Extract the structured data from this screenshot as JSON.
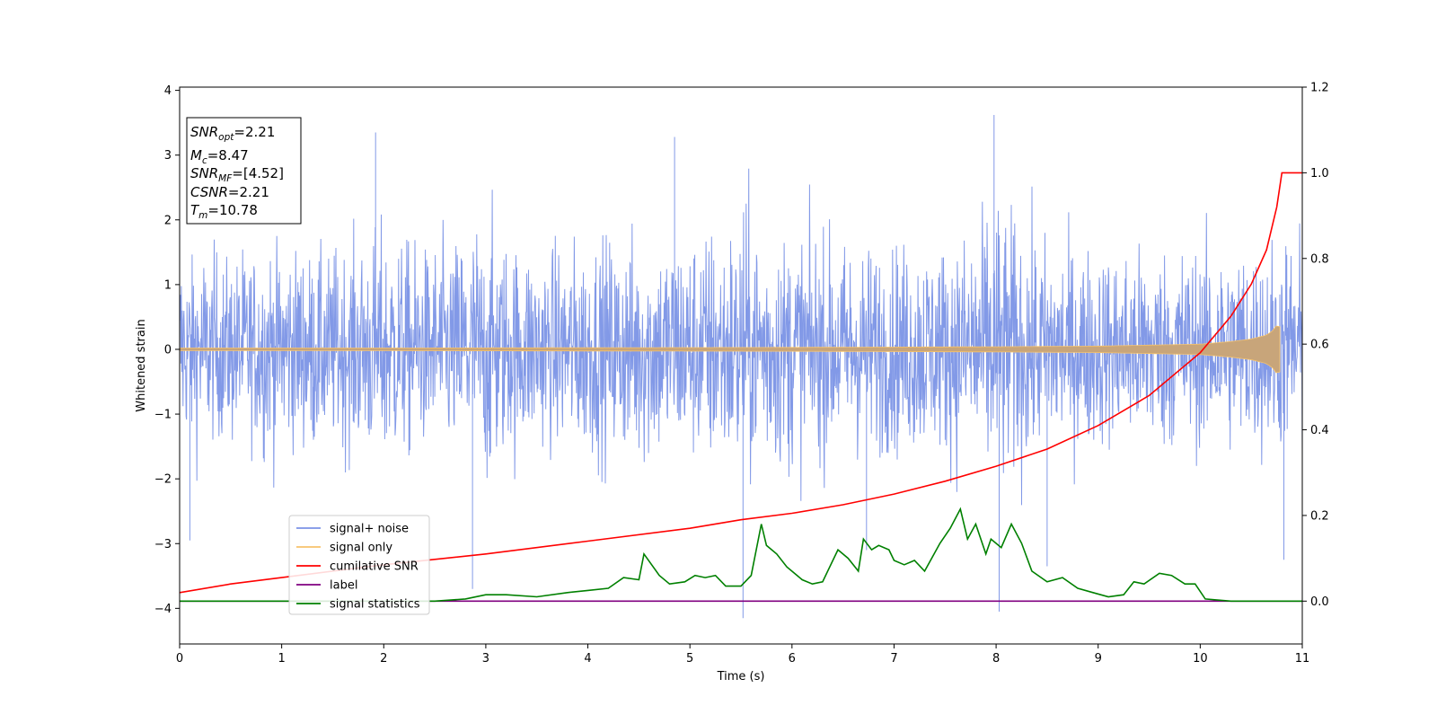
{
  "chart_data": {
    "type": "line",
    "xlabel": "Time (s)",
    "ylabel": "Whitened strain",
    "xlim": [
      0,
      11
    ],
    "ylim_left": [
      -4.55,
      4.05
    ],
    "ylim_right": [
      -0.1,
      1.2
    ],
    "x_ticks": [
      "0",
      "1",
      "2",
      "3",
      "4",
      "5",
      "6",
      "7",
      "8",
      "9",
      "10",
      "11"
    ],
    "y_left_ticks": [
      "4",
      "3",
      "2",
      "1",
      "0",
      "−1",
      "−2",
      "−3",
      "−4"
    ],
    "y_left_tick_values": [
      4,
      3,
      2,
      1,
      0,
      -1,
      -2,
      -3,
      -4
    ],
    "y_right_ticks": [
      "1.2",
      "1.0",
      "0.8",
      "0.6",
      "0.4",
      "0.2",
      "0.0"
    ],
    "y_right_tick_values": [
      1.2,
      1.0,
      0.8,
      0.6,
      0.4,
      0.2,
      0.0
    ],
    "grid": false,
    "legend_position": "lower-left",
    "info_box": {
      "snr_opt": {
        "base": "SNR",
        "sub": "opt",
        "value": "=2.21"
      },
      "mc": {
        "base": "M",
        "sub": "c",
        "value": "=8.47"
      },
      "snr_mf": {
        "base": "SNR",
        "sub": "MF",
        "value": "=[4.52]"
      },
      "csnr": {
        "base": "CSNR",
        "value": "=2.21"
      },
      "tm": {
        "base": "T",
        "sub": "m",
        "value": "=10.78"
      }
    },
    "series": [
      {
        "name": "signal+ noise",
        "color": "#7b93e6",
        "axis": "left",
        "description_values": "whitened noise, roughly -2 to 2 with spikes",
        "envelope_x": [
          0,
          0.5,
          1,
          1.5,
          2,
          2.5,
          3,
          3.5,
          4,
          4.5,
          5,
          5.5,
          6,
          6.5,
          7,
          7.5,
          8,
          8.5,
          9,
          9.5,
          10,
          10.5,
          11
        ],
        "envelope_upper": [
          2.3,
          2.4,
          2.6,
          2.5,
          3.35,
          2.5,
          2.9,
          2.6,
          2.8,
          2.7,
          3.3,
          2.7,
          3.3,
          2.9,
          2.8,
          2.7,
          3.6,
          2.8,
          2.6,
          2.7,
          2.6,
          2.7,
          2.5
        ],
        "envelope_lower": [
          -2.9,
          -2.6,
          -3.05,
          -2.7,
          -2.9,
          -2.8,
          -3.7,
          -2.7,
          -2.9,
          -3.2,
          -2.8,
          -4.15,
          -2.9,
          -2.8,
          -2.8,
          -3.0,
          -4.05,
          -2.9,
          -2.7,
          -2.7,
          -2.8,
          -2.9,
          -3.25
        ],
        "spikes": [
          [
            1.92,
            3.35
          ],
          [
            2.87,
            -3.7
          ],
          [
            5.52,
            -4.15
          ],
          [
            7.98,
            3.62
          ],
          [
            8.03,
            -4.05
          ],
          [
            4.85,
            3.28
          ],
          [
            6.73,
            -3.1
          ],
          [
            10.82,
            -3.25
          ],
          [
            0.1,
            -2.95
          ],
          [
            8.5,
            -3.35
          ]
        ]
      },
      {
        "name": "signal only",
        "color": "#f7c36b",
        "axis": "left",
        "x": [
          0,
          2,
          4,
          6,
          8,
          9,
          10,
          10.3,
          10.5,
          10.65,
          10.72,
          10.76,
          10.78
        ],
        "amplitude": [
          0.02,
          0.02,
          0.025,
          0.03,
          0.04,
          0.05,
          0.08,
          0.12,
          0.16,
          0.22,
          0.3,
          0.4,
          0.35
        ]
      },
      {
        "name": "cumilative SNR",
        "color": "#ff0000",
        "axis": "right",
        "x": [
          0,
          0.5,
          1,
          2,
          3,
          4,
          5,
          5.5,
          6,
          6.5,
          7,
          7.5,
          8,
          8.5,
          9,
          9.5,
          10,
          10.3,
          10.5,
          10.65,
          10.75,
          10.8,
          11
        ],
        "values": [
          0.02,
          0.04,
          0.055,
          0.085,
          0.11,
          0.14,
          0.17,
          0.19,
          0.205,
          0.225,
          0.25,
          0.28,
          0.315,
          0.355,
          0.41,
          0.48,
          0.58,
          0.665,
          0.74,
          0.82,
          0.92,
          1.0,
          1.0
        ]
      },
      {
        "name": "label",
        "color": "#800080",
        "axis": "right",
        "x": [
          0,
          11
        ],
        "values": [
          0.0,
          0.0
        ]
      },
      {
        "name": "signal statistics",
        "color": "#008000",
        "axis": "right",
        "x": [
          0,
          1,
          2,
          2.5,
          2.8,
          3,
          3.2,
          3.5,
          3.8,
          4,
          4.2,
          4.35,
          4.5,
          4.55,
          4.7,
          4.8,
          4.95,
          5.05,
          5.15,
          5.25,
          5.35,
          5.5,
          5.6,
          5.7,
          5.75,
          5.85,
          5.95,
          6.1,
          6.2,
          6.3,
          6.45,
          6.55,
          6.65,
          6.7,
          6.78,
          6.85,
          6.95,
          7.0,
          7.1,
          7.2,
          7.3,
          7.45,
          7.55,
          7.65,
          7.72,
          7.8,
          7.9,
          7.95,
          8.05,
          8.15,
          8.25,
          8.35,
          8.5,
          8.65,
          8.8,
          8.95,
          9.1,
          9.25,
          9.35,
          9.45,
          9.6,
          9.72,
          9.85,
          9.95,
          10.05,
          10.3,
          10.5,
          11
        ],
        "values": [
          0.0,
          0.0,
          0.0,
          0.0,
          0.005,
          0.015,
          0.015,
          0.01,
          0.02,
          0.025,
          0.03,
          0.055,
          0.05,
          0.11,
          0.06,
          0.04,
          0.045,
          0.06,
          0.055,
          0.06,
          0.035,
          0.035,
          0.06,
          0.18,
          0.13,
          0.11,
          0.08,
          0.05,
          0.04,
          0.045,
          0.12,
          0.1,
          0.07,
          0.145,
          0.12,
          0.13,
          0.12,
          0.095,
          0.085,
          0.095,
          0.07,
          0.135,
          0.17,
          0.215,
          0.145,
          0.18,
          0.11,
          0.145,
          0.125,
          0.18,
          0.135,
          0.07,
          0.045,
          0.055,
          0.03,
          0.02,
          0.01,
          0.015,
          0.045,
          0.04,
          0.065,
          0.06,
          0.04,
          0.04,
          0.005,
          0.0,
          0.0,
          0.0
        ]
      }
    ]
  }
}
